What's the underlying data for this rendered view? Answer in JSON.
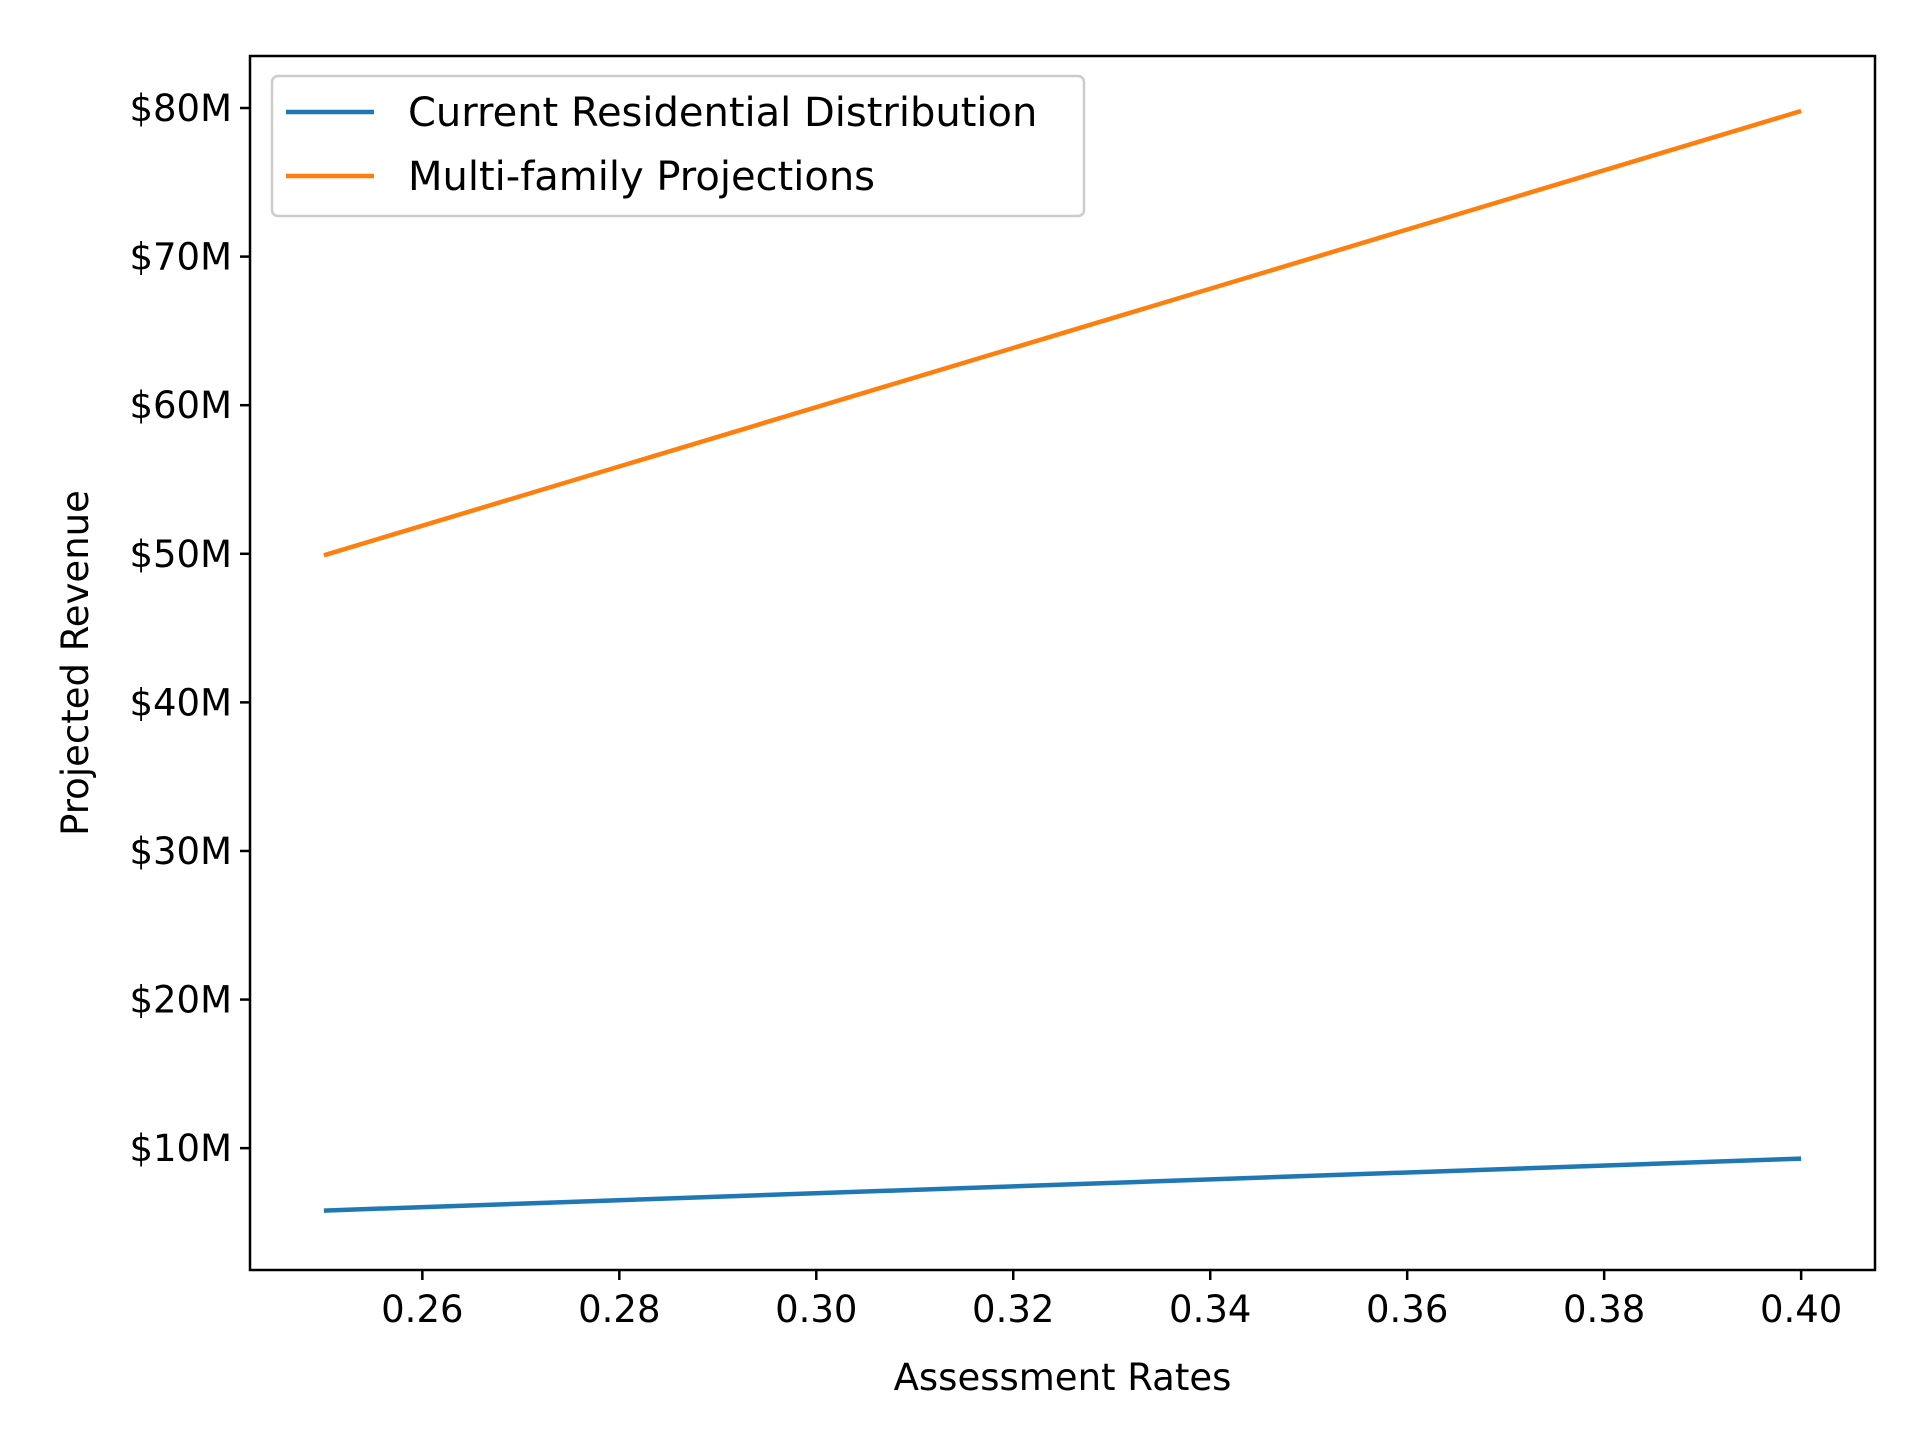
{
  "chart_data": {
    "type": "line",
    "title": "",
    "xlabel": "Assessment Rates",
    "ylabel": "Projected Revenue",
    "xlim": [
      0.2425,
      0.4075
    ],
    "ylim": [
      1800000,
      83500000
    ],
    "x_ticks": [
      {
        "value": 0.26,
        "label": "0.26"
      },
      {
        "value": 0.28,
        "label": "0.28"
      },
      {
        "value": 0.3,
        "label": "0.30"
      },
      {
        "value": 0.32,
        "label": "0.32"
      },
      {
        "value": 0.34,
        "label": "0.34"
      },
      {
        "value": 0.36,
        "label": "0.36"
      },
      {
        "value": 0.38,
        "label": "0.38"
      },
      {
        "value": 0.4,
        "label": "0.40"
      }
    ],
    "y_ticks": [
      {
        "value": 10000000,
        "label": "$10M"
      },
      {
        "value": 20000000,
        "label": "$20M"
      },
      {
        "value": 30000000,
        "label": "$30M"
      },
      {
        "value": 40000000,
        "label": "$40M"
      },
      {
        "value": 50000000,
        "label": "$50M"
      },
      {
        "value": 60000000,
        "label": "$60M"
      },
      {
        "value": 70000000,
        "label": "$70M"
      },
      {
        "value": 80000000,
        "label": "$80M"
      }
    ],
    "grid": false,
    "legend": "top-left",
    "series": [
      {
        "name": "Current Residential Distribution",
        "color": "#1f77b4",
        "x": [
          0.25,
          0.4
        ],
        "y": [
          5800000,
          9300000
        ]
      },
      {
        "name": "Multi-family Projections",
        "color": "#ff7f0e",
        "x": [
          0.25,
          0.4
        ],
        "y": [
          49900000,
          79800000
        ]
      }
    ]
  }
}
